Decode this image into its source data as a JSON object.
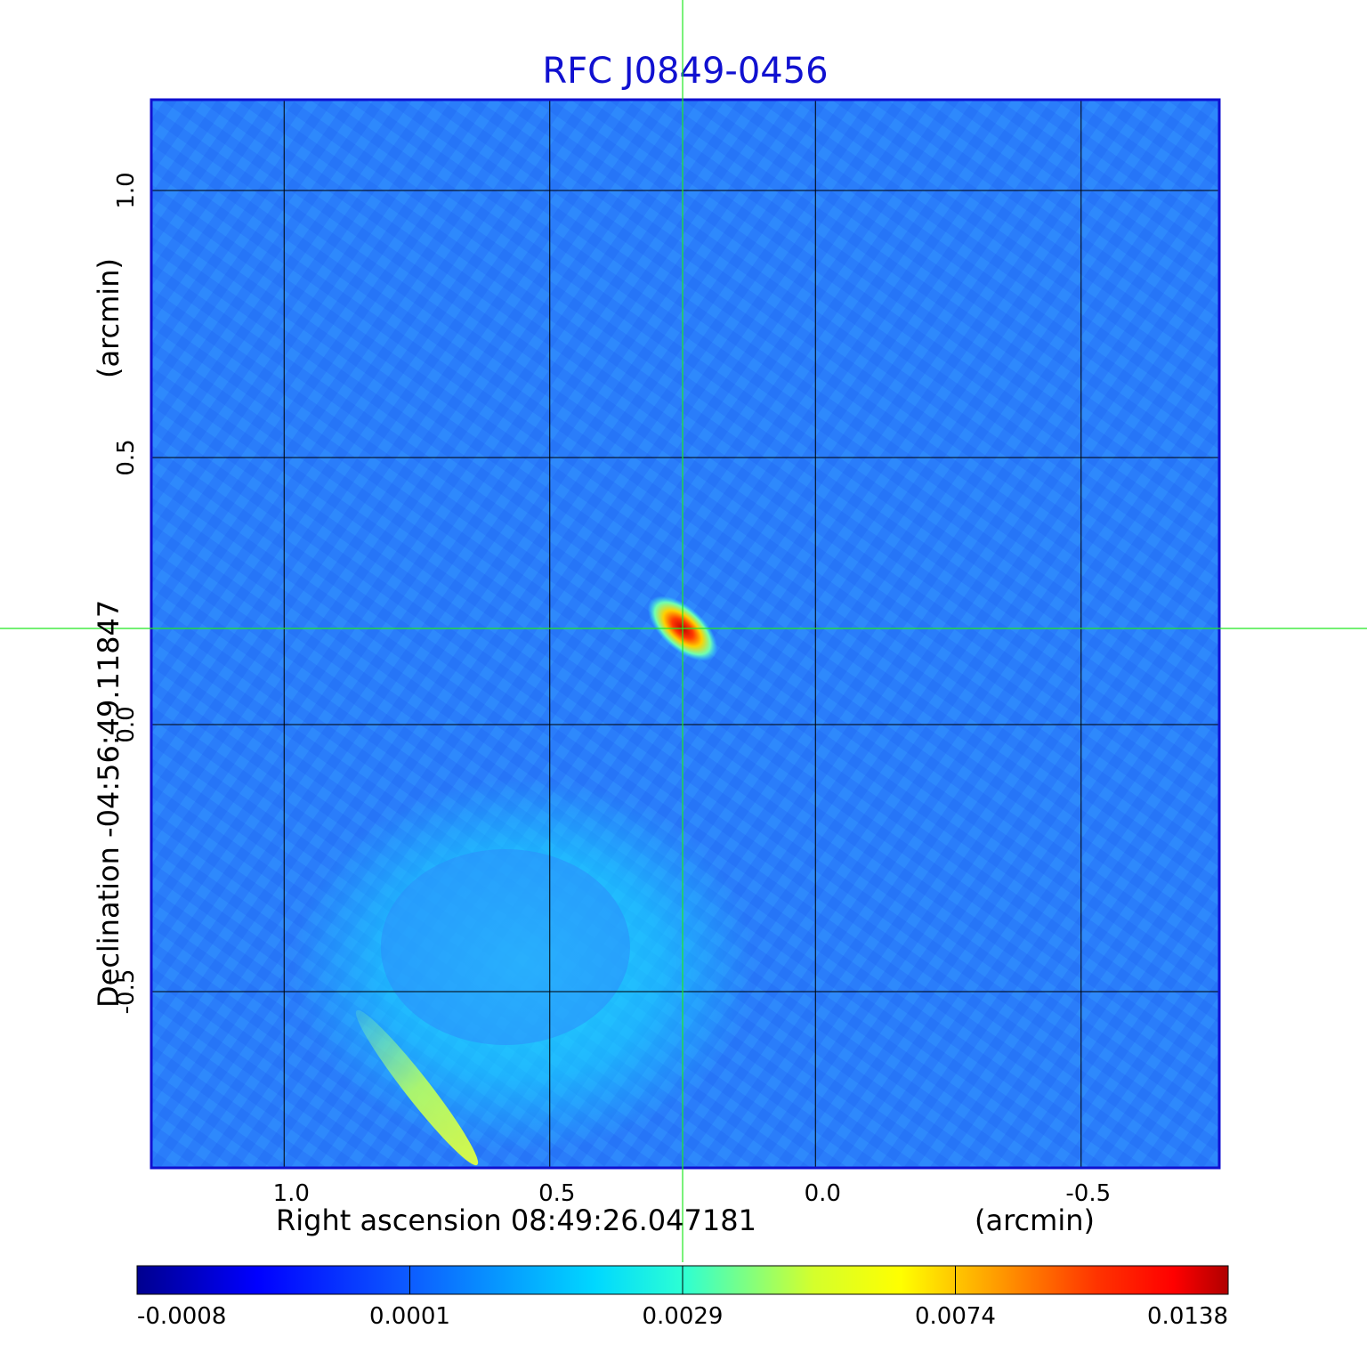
{
  "chart_data": {
    "type": "heatmap",
    "title": "RFC J0849-0456",
    "xlabel": "Right ascension  08:49:26.047181",
    "xunit": "(arcmin)",
    "ylabel": "Declination  -04:56:49.11847",
    "yunit": "(arcmin)",
    "xlim": [
      1.25,
      -0.76
    ],
    "ylim": [
      -0.83,
      1.17
    ],
    "x_ticks": [
      {
        "value": 1.0,
        "label": "1.0"
      },
      {
        "value": 0.5,
        "label": "0.5"
      },
      {
        "value": 0.0,
        "label": "0.0"
      },
      {
        "value": -0.5,
        "label": "-0.5"
      }
    ],
    "y_ticks": [
      {
        "value": 1.0,
        "label": "1.0"
      },
      {
        "value": 0.5,
        "label": "0.5"
      },
      {
        "value": 0.0,
        "label": "0.0"
      },
      {
        "value": -0.5,
        "label": "-0.5"
      }
    ],
    "grid": true,
    "crosshair": {
      "x": 0.25,
      "y": 0.18
    },
    "colormap": "jet",
    "colorbar": {
      "ticks": [
        {
          "value": -0.0008,
          "label": "-0.0008"
        },
        {
          "value": 0.0001,
          "label": "0.0001"
        },
        {
          "value": 0.0029,
          "label": "0.0029"
        },
        {
          "value": 0.0074,
          "label": "0.0074"
        },
        {
          "value": 0.0138,
          "label": "0.0138"
        }
      ]
    },
    "peak": {
      "x": 0.25,
      "y": 0.18,
      "value": 0.0138
    },
    "features": [
      {
        "kind": "extended-emission",
        "x": 0.55,
        "y": -0.45,
        "value": 0.0012
      },
      {
        "kind": "jet-streak",
        "x": 0.75,
        "y": -0.68,
        "value": 0.0032
      }
    ]
  }
}
